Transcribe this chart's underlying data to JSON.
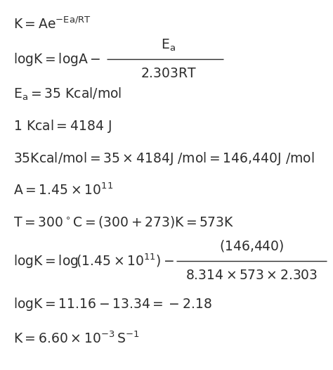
{
  "background_color": "#ffffff",
  "text_color": "#2d2d2d",
  "figsize": [
    4.74,
    5.26
  ],
  "dpi": 100,
  "font_size": 13.5
}
